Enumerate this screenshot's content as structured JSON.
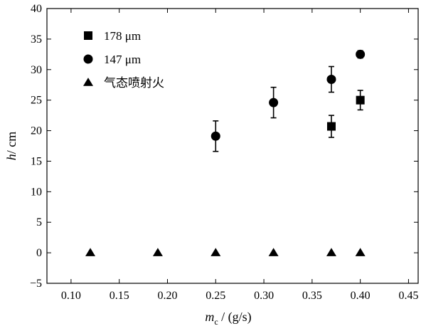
{
  "chart_data": {
    "type": "scatter",
    "xlabel_main": "m",
    "xlabel_sub": "c",
    "xlabel_unit": " / (g/s)",
    "ylabel_main": "h",
    "ylabel_unit": "/ cm",
    "xlim": [
      0.075,
      0.46
    ],
    "ylim": [
      -5,
      40
    ],
    "xticks": [
      0.1,
      0.15,
      0.2,
      0.25,
      0.3,
      0.35,
      0.4,
      0.45
    ],
    "xtick_labels": [
      "0.10",
      "0.15",
      "0.20",
      "0.25",
      "0.30",
      "0.35",
      "0.40",
      "0.45"
    ],
    "yticks": [
      -5,
      0,
      5,
      10,
      15,
      20,
      25,
      30,
      35,
      40
    ],
    "ytick_labels": [
      "−5",
      "0",
      "5",
      "10",
      "15",
      "20",
      "25",
      "30",
      "35",
      "40"
    ],
    "grid": false,
    "legend_position": "top-left",
    "series": [
      {
        "name": "178 μm",
        "marker": "square",
        "points": [
          {
            "x": 0.37,
            "y": 20.7,
            "err": 1.8
          },
          {
            "x": 0.4,
            "y": 25.0,
            "err": 1.6
          }
        ]
      },
      {
        "name": "147 μm",
        "marker": "circle",
        "points": [
          {
            "x": 0.25,
            "y": 19.1,
            "err": 2.5
          },
          {
            "x": 0.31,
            "y": 24.6,
            "err": 2.5
          },
          {
            "x": 0.37,
            "y": 28.4,
            "err": 2.1
          },
          {
            "x": 0.4,
            "y": 32.5,
            "err": 0.6
          }
        ]
      },
      {
        "name": "气态喷射火",
        "marker": "triangle",
        "points": [
          {
            "x": 0.12,
            "y": 0
          },
          {
            "x": 0.19,
            "y": 0
          },
          {
            "x": 0.25,
            "y": 0
          },
          {
            "x": 0.31,
            "y": 0
          },
          {
            "x": 0.37,
            "y": 0
          },
          {
            "x": 0.4,
            "y": 0
          }
        ]
      }
    ]
  }
}
